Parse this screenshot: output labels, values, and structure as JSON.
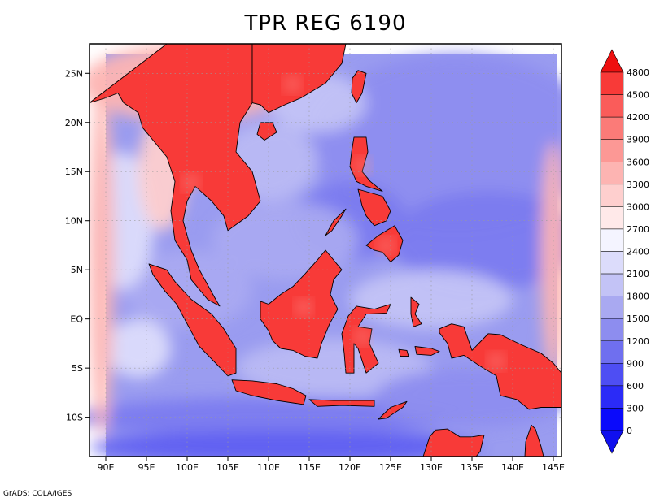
{
  "title": "TPR REG 6190",
  "credit": "GrADS: COLA/IGES",
  "map": {
    "lon_range": [
      88,
      146
    ],
    "lat_range": [
      -14,
      28
    ],
    "lon_ticks": [
      {
        "value": 90,
        "label": "90E"
      },
      {
        "value": 95,
        "label": "95E"
      },
      {
        "value": 100,
        "label": "100E"
      },
      {
        "value": 105,
        "label": "105E"
      },
      {
        "value": 110,
        "label": "110E"
      },
      {
        "value": 115,
        "label": "115E"
      },
      {
        "value": 120,
        "label": "120E"
      },
      {
        "value": 125,
        "label": "125E"
      },
      {
        "value": 130,
        "label": "130E"
      },
      {
        "value": 135,
        "label": "135E"
      },
      {
        "value": 140,
        "label": "140E"
      },
      {
        "value": 145,
        "label": "145E"
      }
    ],
    "lat_ticks": [
      {
        "value": 25,
        "label": "25N"
      },
      {
        "value": 20,
        "label": "20N"
      },
      {
        "value": 15,
        "label": "15N"
      },
      {
        "value": 10,
        "label": "10N"
      },
      {
        "value": 5,
        "label": "5N"
      },
      {
        "value": 0,
        "label": "EQ"
      },
      {
        "value": -5,
        "label": "5S"
      },
      {
        "value": -10,
        "label": "10S"
      }
    ]
  },
  "colorbar": {
    "levels": [
      {
        "label": "4800",
        "color": "#f50f0f"
      },
      {
        "label": "4500",
        "color": "#f83a38"
      },
      {
        "label": "4200",
        "color": "#fa5c5a"
      },
      {
        "label": "3900",
        "color": "#fb7b78"
      },
      {
        "label": "3600",
        "color": "#fc9895"
      },
      {
        "label": "3300",
        "color": "#fdb4b2"
      },
      {
        "label": "3000",
        "color": "#fecfce"
      },
      {
        "label": "2700",
        "color": "#ffe9e9"
      },
      {
        "label": "2400",
        "color": "#f4f4ff"
      },
      {
        "label": "2100",
        "color": "#dcdcfb"
      },
      {
        "label": "1800",
        "color": "#c3c3f6"
      },
      {
        "label": "1500",
        "color": "#a9a9f1"
      },
      {
        "label": "1200",
        "color": "#8d8def"
      },
      {
        "label": "900",
        "color": "#6f6fef"
      },
      {
        "label": "600",
        "color": "#4e4ef3"
      },
      {
        "label": "300",
        "color": "#2b2bf7"
      },
      {
        "label": "0",
        "color": "#0a0afb"
      }
    ],
    "top_color": "#ee1010",
    "bottom_color": "#1010ee"
  },
  "field": {
    "ocean_color": "#9a9cf0",
    "regions": [
      {
        "lon": 133,
        "lat": 18,
        "rx": 18,
        "ry": 9,
        "color": "#8d8def"
      },
      {
        "lon": 137,
        "lat": 8,
        "rx": 12,
        "ry": 5,
        "color": "#7b7bef"
      },
      {
        "lon": 120,
        "lat": 10,
        "rx": 7,
        "ry": 4,
        "color": "#7b7bef"
      },
      {
        "lon": 112,
        "lat": 8,
        "rx": 9,
        "ry": 4,
        "color": "#a9a9f1"
      },
      {
        "lon": 110,
        "lat": 16,
        "rx": 6,
        "ry": 4,
        "color": "#b9b9f3"
      },
      {
        "lon": 100,
        "lat": 3,
        "rx": 8,
        "ry": 4,
        "color": "#a9a9f1"
      },
      {
        "lon": 92,
        "lat": 10,
        "rx": 4,
        "ry": 7,
        "color": "#dcdcfb"
      },
      {
        "lon": 100,
        "lat": 24,
        "rx": 13,
        "ry": 4,
        "color": "#fdb4b2"
      },
      {
        "lon": 97,
        "lat": 15,
        "rx": 3,
        "ry": 6,
        "color": "#fecfce"
      },
      {
        "lon": 116,
        "lat": 22,
        "rx": 6,
        "ry": 3,
        "color": "#c3c3f6"
      },
      {
        "lon": 130,
        "lat": 2,
        "rx": 10,
        "ry": 3,
        "color": "#c3c3f6"
      },
      {
        "lon": 118,
        "lat": -5,
        "rx": 12,
        "ry": 3,
        "color": "#b9b9f3"
      },
      {
        "lon": 110,
        "lat": -10,
        "rx": 24,
        "ry": 2,
        "color": "#7b7bef"
      },
      {
        "lon": 112,
        "lat": -13,
        "rx": 24,
        "ry": 1.6,
        "color": "#5e5ef1"
      },
      {
        "lon": 135,
        "lat": -8,
        "rx": 12,
        "ry": 3,
        "color": "#8d8def"
      },
      {
        "lon": 94,
        "lat": -3,
        "rx": 4,
        "ry": 3,
        "color": "#dcdcfb"
      },
      {
        "lon": 145,
        "lat": 6,
        "rx": 1.5,
        "ry": 12,
        "color": "#fdb4b2"
      },
      {
        "lon": 89.5,
        "lat": 6,
        "rx": 1.5,
        "ry": 18,
        "color": "#fdb4b2"
      }
    ],
    "land_color": "#f83a38",
    "land_inner_color": "#fc9895",
    "coast_color": "#000000",
    "lands": [
      {
        "name": "indochina",
        "inner": true,
        "pts": [
          [
            97.5,
            28
          ],
          [
            108,
            28
          ],
          [
            108,
            22
          ],
          [
            106.5,
            20
          ],
          [
            106,
            17
          ],
          [
            108,
            15
          ],
          [
            109,
            12
          ],
          [
            107.5,
            10.5
          ],
          [
            105,
            9
          ],
          [
            104.5,
            10.5
          ],
          [
            103,
            12
          ],
          [
            101,
            13.5
          ],
          [
            100,
            12
          ],
          [
            99.5,
            10
          ],
          [
            100.5,
            7
          ],
          [
            101.5,
            5
          ],
          [
            103.5,
            2
          ],
          [
            104,
            1.3
          ],
          [
            102.5,
            2
          ],
          [
            100.5,
            4
          ],
          [
            100,
            6
          ],
          [
            98.5,
            8
          ],
          [
            98,
            11
          ],
          [
            98.5,
            14
          ],
          [
            97.5,
            16.5
          ],
          [
            96,
            18
          ],
          [
            94.5,
            19.5
          ],
          [
            94,
            21
          ],
          [
            92.2,
            22
          ],
          [
            91.5,
            23
          ],
          [
            90,
            22.5
          ],
          [
            88,
            22
          ]
        ]
      },
      {
        "name": "south-china",
        "inner": true,
        "pts": [
          [
            108,
            28
          ],
          [
            119.5,
            28
          ],
          [
            119,
            26
          ],
          [
            117,
            24
          ],
          [
            114,
            22.5
          ],
          [
            112,
            21.8
          ],
          [
            110,
            21
          ],
          [
            109,
            21.8
          ],
          [
            108,
            22
          ]
        ]
      },
      {
        "name": "hainan",
        "inner": false,
        "pts": [
          [
            109,
            20
          ],
          [
            110.5,
            20
          ],
          [
            111,
            19
          ],
          [
            109.5,
            18.2
          ],
          [
            108.6,
            18.8
          ]
        ]
      },
      {
        "name": "taiwan",
        "inner": false,
        "pts": [
          [
            121,
            25.3
          ],
          [
            122,
            25
          ],
          [
            121.5,
            23
          ],
          [
            120.8,
            22
          ],
          [
            120.2,
            23
          ],
          [
            120.3,
            24.5
          ]
        ]
      },
      {
        "name": "luzon",
        "inner": true,
        "pts": [
          [
            120.5,
            18.5
          ],
          [
            122,
            18.5
          ],
          [
            122.2,
            17
          ],
          [
            121.5,
            15
          ],
          [
            122.5,
            14
          ],
          [
            124,
            13
          ],
          [
            122,
            13.5
          ],
          [
            120.8,
            14
          ],
          [
            120,
            15.5
          ],
          [
            120.2,
            17
          ]
        ]
      },
      {
        "name": "mindoro-visayas",
        "inner": false,
        "pts": [
          [
            121,
            13.2
          ],
          [
            124,
            12.5
          ],
          [
            125,
            11
          ],
          [
            124.5,
            10
          ],
          [
            123,
            9.5
          ],
          [
            122,
            10.5
          ],
          [
            121.5,
            11.5
          ]
        ]
      },
      {
        "name": "palawan",
        "inner": false,
        "pts": [
          [
            117,
            8.5
          ],
          [
            118,
            10
          ],
          [
            119.5,
            11.2
          ],
          [
            119,
            10.5
          ],
          [
            117.8,
            9
          ]
        ]
      },
      {
        "name": "mindanao",
        "inner": true,
        "pts": [
          [
            122,
            7.5
          ],
          [
            123.5,
            8.5
          ],
          [
            125.5,
            9.5
          ],
          [
            126.5,
            8
          ],
          [
            126,
            6.5
          ],
          [
            125,
            5.8
          ],
          [
            124,
            6.8
          ],
          [
            123,
            7
          ]
        ]
      },
      {
        "name": "sumatra",
        "inner": false,
        "pts": [
          [
            95.3,
            5.6
          ],
          [
            97.5,
            5
          ],
          [
            98.5,
            3.8
          ],
          [
            100.5,
            2
          ],
          [
            103,
            0.5
          ],
          [
            104.5,
            -1
          ],
          [
            106,
            -3
          ],
          [
            106,
            -5.5
          ],
          [
            105,
            -5.8
          ],
          [
            103.5,
            -4.5
          ],
          [
            101.5,
            -2.8
          ],
          [
            100,
            -0.5
          ],
          [
            98.7,
            1.5
          ],
          [
            97.3,
            2.8
          ],
          [
            95.8,
            4.5
          ]
        ]
      },
      {
        "name": "java",
        "inner": false,
        "pts": [
          [
            105.5,
            -6.2
          ],
          [
            108,
            -6.3
          ],
          [
            111,
            -6.6
          ],
          [
            113,
            -7.1
          ],
          [
            114.6,
            -7.8
          ],
          [
            114.3,
            -8.7
          ],
          [
            111,
            -8.3
          ],
          [
            108,
            -7.8
          ],
          [
            106,
            -7.3
          ]
        ]
      },
      {
        "name": "lesser-sunda",
        "inner": false,
        "pts": [
          [
            115,
            -8.2
          ],
          [
            118,
            -8.3
          ],
          [
            121,
            -8.3
          ],
          [
            123,
            -8.3
          ],
          [
            123,
            -8.9
          ],
          [
            119,
            -8.8
          ],
          [
            116,
            -8.9
          ]
        ]
      },
      {
        "name": "timor",
        "inner": false,
        "pts": [
          [
            123.5,
            -10.2
          ],
          [
            125,
            -9
          ],
          [
            127,
            -8.4
          ],
          [
            126.5,
            -9
          ],
          [
            124.5,
            -10.1
          ]
        ]
      },
      {
        "name": "borneo",
        "inner": true,
        "pts": [
          [
            109,
            1.8
          ],
          [
            110,
            1.5
          ],
          [
            111.5,
            2.5
          ],
          [
            113,
            3.3
          ],
          [
            114.5,
            4.6
          ],
          [
            116,
            6
          ],
          [
            117,
            7
          ],
          [
            118,
            6
          ],
          [
            119,
            5
          ],
          [
            118,
            4
          ],
          [
            117.6,
            2.5
          ],
          [
            118.5,
            1
          ],
          [
            117.5,
            -0.5
          ],
          [
            116.5,
            -2.5
          ],
          [
            116,
            -4
          ],
          [
            114.5,
            -3.8
          ],
          [
            113,
            -3.2
          ],
          [
            111.5,
            -3
          ],
          [
            110.5,
            -2.2
          ],
          [
            110,
            -1.2
          ],
          [
            109,
            0
          ]
        ]
      },
      {
        "name": "sulawesi",
        "inner": true,
        "pts": [
          [
            120.8,
            1.3
          ],
          [
            123,
            1
          ],
          [
            125,
            1.5
          ],
          [
            124.5,
            0.6
          ],
          [
            122,
            0.5
          ],
          [
            121,
            -0.8
          ],
          [
            122.7,
            -1
          ],
          [
            122.4,
            -2.5
          ],
          [
            123.5,
            -4.5
          ],
          [
            122,
            -5.5
          ],
          [
            121,
            -3
          ],
          [
            120.5,
            -2.5
          ],
          [
            120.5,
            -5.5
          ],
          [
            119.5,
            -5.5
          ],
          [
            119.3,
            -3.5
          ],
          [
            119,
            -1.5
          ],
          [
            119.8,
            0.3
          ]
        ]
      },
      {
        "name": "halmahera",
        "inner": false,
        "pts": [
          [
            127.5,
            2.2
          ],
          [
            128.5,
            1.5
          ],
          [
            128,
            0.5
          ],
          [
            128.8,
            -0.5
          ],
          [
            127.8,
            -0.8
          ],
          [
            127.5,
            0.5
          ]
        ]
      },
      {
        "name": "seram",
        "inner": false,
        "pts": [
          [
            128,
            -2.8
          ],
          [
            130,
            -3
          ],
          [
            131,
            -3.3
          ],
          [
            130,
            -3.7
          ],
          [
            128.2,
            -3.6
          ]
        ]
      },
      {
        "name": "buru",
        "inner": false,
        "pts": [
          [
            126,
            -3.1
          ],
          [
            127,
            -3.2
          ],
          [
            127.2,
            -3.8
          ],
          [
            126.2,
            -3.8
          ]
        ]
      },
      {
        "name": "new-guinea",
        "inner": true,
        "pts": [
          [
            131,
            -1
          ],
          [
            132.5,
            -0.5
          ],
          [
            134,
            -0.8
          ],
          [
            135,
            -3.2
          ],
          [
            137,
            -1.5
          ],
          [
            138.5,
            -1.6
          ],
          [
            141,
            -2.6
          ],
          [
            143.5,
            -3.5
          ],
          [
            145,
            -4.5
          ],
          [
            146,
            -5.5
          ],
          [
            146,
            -9
          ],
          [
            143.5,
            -9
          ],
          [
            142,
            -9.2
          ],
          [
            140.5,
            -8.2
          ],
          [
            138.5,
            -7.8
          ],
          [
            138,
            -5.8
          ],
          [
            136,
            -4.8
          ],
          [
            134,
            -3.7
          ],
          [
            132.5,
            -4
          ],
          [
            132,
            -2.5
          ],
          [
            131,
            -1.4
          ]
        ]
      },
      {
        "name": "australia",
        "inner": false,
        "pts": [
          [
            129,
            -14
          ],
          [
            129.8,
            -12
          ],
          [
            130.5,
            -11.3
          ],
          [
            132,
            -11.2
          ],
          [
            133.5,
            -12
          ],
          [
            135,
            -12
          ],
          [
            136.5,
            -11.8
          ],
          [
            136,
            -13.5
          ],
          [
            135.5,
            -14
          ]
        ]
      },
      {
        "name": "cape-york",
        "inner": false,
        "pts": [
          [
            141.5,
            -14
          ],
          [
            141.6,
            -12.5
          ],
          [
            142.3,
            -10.8
          ],
          [
            142.8,
            -11.2
          ],
          [
            143.5,
            -13
          ],
          [
            143.8,
            -14
          ]
        ]
      }
    ]
  }
}
